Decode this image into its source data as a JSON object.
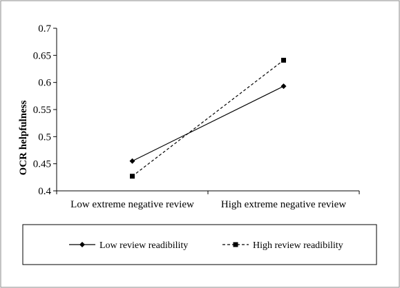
{
  "chart_data": {
    "type": "line",
    "title": "",
    "xlabel": "",
    "ylabel": "OCR helpfulness",
    "categories": [
      "Low extreme negative review",
      "High extreme negative review"
    ],
    "ylim": [
      0.4,
      0.7
    ],
    "yticks": [
      "0.4",
      "0.45",
      "0.5",
      "0.55",
      "0.6",
      "0.65",
      "0.7"
    ],
    "grid": false,
    "legend_position": "bottom",
    "series": [
      {
        "name": "Low review readibility",
        "values": [
          0.455,
          0.593
        ],
        "marker": "diamond",
        "line_style": "solid",
        "color": "#000000"
      },
      {
        "name": "High review readibility",
        "values": [
          0.427,
          0.641
        ],
        "marker": "square",
        "line_style": "dashed",
        "color": "#000000"
      }
    ]
  }
}
